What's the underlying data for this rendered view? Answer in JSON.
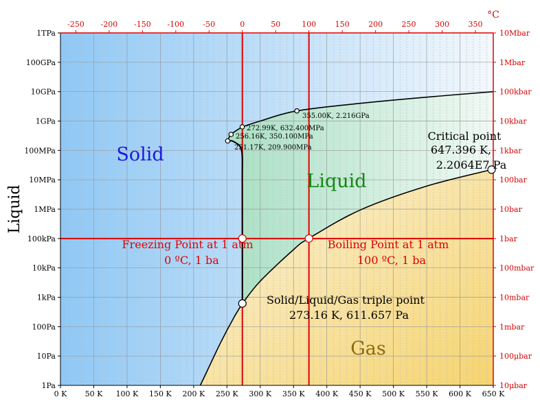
{
  "chart_data": {
    "type": "phase-diagram",
    "ylabel": "Liquid",
    "top_unit": "°C",
    "x_range_K": [
      0,
      650
    ],
    "y_range_log10_Pa": [
      0,
      12
    ],
    "x_ticks": [
      "0 K",
      "50 K",
      "100 K",
      "150 K",
      "200 K",
      "250 K",
      "300 K",
      "350 K",
      "400 K",
      "450 K",
      "500 K",
      "550 K",
      "600 K",
      "650 K"
    ],
    "x_top_ticks": [
      "-250",
      "-200",
      "-150",
      "-100",
      "-50",
      "0",
      "50",
      "100",
      "150",
      "200",
      "250",
      "300",
      "350"
    ],
    "y_left_ticks": [
      "1Pa",
      "10Pa",
      "100Pa",
      "1kPa",
      "10kPa",
      "100kPa",
      "1MPa",
      "10MPa",
      "100MPa",
      "1GPa",
      "10GPa",
      "100GPa",
      "1TPa"
    ],
    "y_right_ticks": [
      "10μbar",
      "100μbar",
      "1mbar",
      "10mbar",
      "100mbar",
      "1bar",
      "10bar",
      "100bar",
      "1kbar",
      "10kbar",
      "100kbar",
      "1Mbar",
      "10Mbar"
    ],
    "regions": {
      "solid": "Solid",
      "liquid": "Liquid",
      "gas": "Gas"
    },
    "reference_lines": [
      {
        "axis": "x",
        "value": 273.15
      },
      {
        "axis": "x",
        "value": 373.15
      },
      {
        "axis": "y",
        "value": 100000
      }
    ],
    "curves": {
      "sublimation": [
        [
          210,
          1
        ],
        [
          220,
          3
        ],
        [
          240,
          27
        ],
        [
          260,
          195
        ],
        [
          273.16,
          611.657
        ]
      ],
      "vaporization": [
        [
          273.16,
          611.657
        ],
        [
          300,
          3540
        ],
        [
          350,
          41700
        ],
        [
          373.15,
          101325
        ],
        [
          450,
          932000
        ],
        [
          550,
          6100000
        ],
        [
          647.396,
          22064000
        ]
      ],
      "melting_low": [
        [
          273.16,
          611.657
        ],
        [
          273.15,
          101325
        ],
        [
          273,
          10000000
        ],
        [
          272,
          100000000
        ],
        [
          260,
          200000000
        ],
        [
          251.17,
          209900000
        ]
      ],
      "ice_boundaries": [
        [
          251.17,
          209900000
        ],
        [
          256.16,
          350100000
        ],
        [
          272.99,
          632400000
        ]
      ],
      "melting_high": [
        [
          272.99,
          632400000
        ],
        [
          300,
          1000000000
        ],
        [
          355,
          2216000000
        ],
        [
          450,
          4000000000
        ],
        [
          550,
          6500000000
        ],
        [
          650,
          10000000000
        ]
      ]
    },
    "points": [
      {
        "name": "triple-point",
        "T": 273.16,
        "P": 611.657,
        "label1": "Solid/Liquid/Gas triple point",
        "label2": "273.16 K, 611.657 Pa"
      },
      {
        "name": "critical-point",
        "T": 647.396,
        "P": 22064000,
        "label1": "Critical point",
        "label2": "647.396 K,",
        "label3": "2.2064E7 Pa"
      },
      {
        "name": "freezing-point",
        "T": 273.15,
        "P": 100000,
        "label1": "Freezing Point at 1 atm",
        "label2": "0 ºC, 1 ba"
      },
      {
        "name": "boiling-point",
        "T": 373.15,
        "P": 100000,
        "label1": "Boiling Point at 1 atm",
        "label2": "100 ºC, 1 ba"
      },
      {
        "name": "point-355",
        "T": 355,
        "P": 2216000000,
        "label1": "355.00K, 2.216GPa"
      },
      {
        "name": "point-272",
        "T": 272.99,
        "P": 632400000,
        "label1": "272.99K, 632.400MPa"
      },
      {
        "name": "point-256",
        "T": 256.16,
        "P": 350100000,
        "label1": "256.16K, 350.100MPa"
      },
      {
        "name": "point-251",
        "T": 251.17,
        "P": 209900000,
        "label1": "251.17K, 209.900MPa"
      }
    ],
    "colors": {
      "solid": "#9fcff7",
      "liquid": "#b8e6cf",
      "gas": "#f5d98c",
      "grid": "#a0a0a0",
      "reference": "#e00000",
      "top_axis": "#e00000",
      "right_axis": "#e00000"
    }
  }
}
